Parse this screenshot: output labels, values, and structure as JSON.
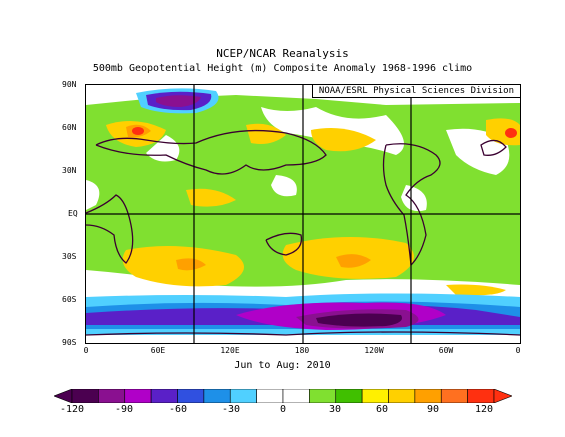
{
  "title": "NCEP/NCAR Reanalysis",
  "subtitle": "500mb Geopotential Height (m) Composite Anomaly 1968-1996 climo",
  "credit": "NOAA/ESRL Physical Sciences Division",
  "period": "Jun to Aug: 2010",
  "y_ticks": [
    "90N",
    "60N",
    "30N",
    "EQ",
    "30S",
    "60S",
    "90S"
  ],
  "x_ticks": [
    "0",
    "60E",
    "120E",
    "180",
    "120W",
    "60W",
    "0"
  ],
  "colorbar": {
    "labels": [
      "-120",
      "-90",
      "-60",
      "-30",
      "0",
      "30",
      "60",
      "90",
      "120"
    ],
    "colors": [
      "#4b0050",
      "#8a1090",
      "#b000c8",
      "#5a20c8",
      "#3050e0",
      "#1e90e8",
      "#50d0ff",
      "#ffffff",
      "#ffffff",
      "#80e030",
      "#40c000",
      "#fff000",
      "#ffd000",
      "#ffa000",
      "#ff7020",
      "#ff3010"
    ]
  },
  "chart_data": {
    "type": "heatmap",
    "title": "NCEP/NCAR Reanalysis",
    "subtitle": "500mb Geopotential Height (m) Composite Anomaly 1968-1996 climo",
    "period": "Jun to Aug: 2010",
    "xlabel": "",
    "ylabel": "",
    "x_range": [
      0,
      360
    ],
    "y_range": [
      -90,
      90
    ],
    "color_range": [
      -120,
      120
    ],
    "color_step": 15,
    "grid": true,
    "features": [
      {
        "name": "strong negative anomaly",
        "lon": 210,
        "lat": -72,
        "value": -120
      },
      {
        "name": "negative anomaly",
        "lon": 110,
        "lat": -72,
        "value": -60
      },
      {
        "name": "negative anomaly",
        "lon": 110,
        "lat": 80,
        "value": -75
      },
      {
        "name": "positive anomaly",
        "lon": 40,
        "lat": 57,
        "value": 75
      },
      {
        "name": "positive anomaly",
        "lon": 205,
        "lat": -32,
        "value": 60
      },
      {
        "name": "positive anomaly",
        "lon": 95,
        "lat": -30,
        "value": 45
      },
      {
        "name": "positive anomaly",
        "lon": 345,
        "lat": 57,
        "value": 45
      }
    ]
  }
}
